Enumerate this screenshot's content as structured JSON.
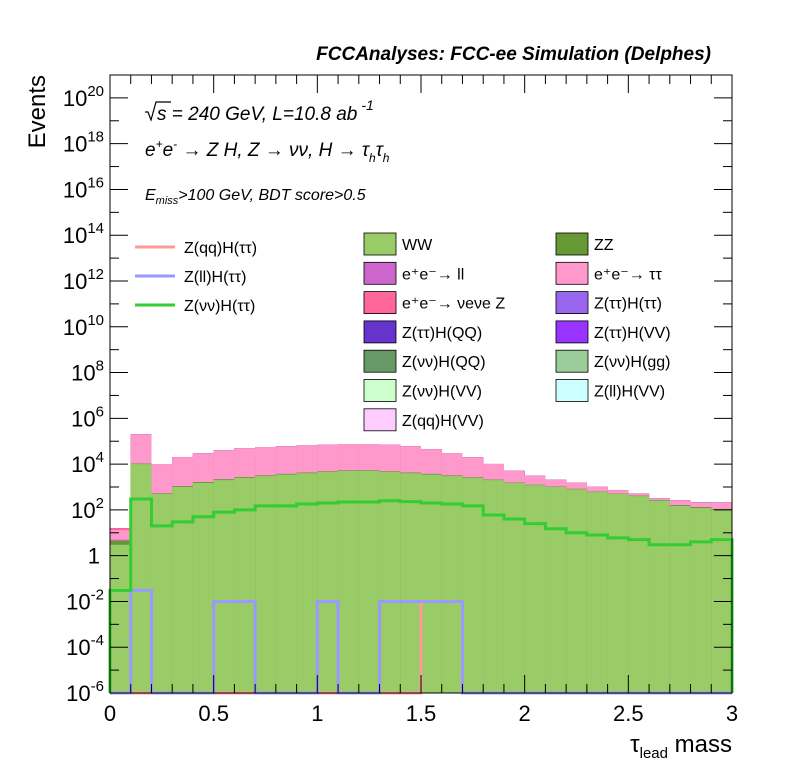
{
  "header": "FCCAnalyses: FCC-ee Simulation (Delphes)",
  "annotations": {
    "energy": "√s = 240 GeV, L=10.8 ab",
    "energy_sup": "-1",
    "process": "e⁺e⁻ → Z H, Z → νν, H → τhτh",
    "cuts": "Emiss>100 GeV, BDT score>0.5"
  },
  "colors": {
    "ee_tautau": "#ff99cc",
    "WW": "#99cc66",
    "ZZ": "#669933",
    "ee_nunuZ": "#ff6699",
    "ee_ll": "#cc66cc",
    "nunuH_QQ": "#669966",
    "nunuH_VV": "#ccffcc",
    "qqH_VV": "#ffccff",
    "nunuH_gg": "#99cc99",
    "llH_VV": "#ccffff",
    "tautauH_tautau": "#9966ee",
    "tautauH_QQ": "#6633cc",
    "tautauH_VV": "#9933ff",
    "sig_qq": "#ff9999",
    "sig_ll": "#9999ff",
    "sig_nunu": "#33cc33"
  },
  "chart_data": {
    "type": "histogram (stacked, log scale)",
    "title": "FCCAnalyses: FCC-ee Simulation (Delphes)",
    "xlabel": "τ_lead mass",
    "ylabel": "Events",
    "xlim": [
      0,
      3
    ],
    "ylim": [
      1e-06,
      1e+21
    ],
    "yscale": "log",
    "x_ticks": [
      "0",
      "0.5",
      "1",
      "1.5",
      "2",
      "2.5",
      "3"
    ],
    "y_ticks": [
      "10^-6",
      "10^-4",
      "10^-2",
      "1",
      "10^2",
      "10^4",
      "10^6",
      "10^8",
      "10^10",
      "10^12",
      "10^14",
      "10^16",
      "10^18",
      "10^20"
    ],
    "bin_edges": [
      0,
      0.1,
      0.2,
      0.3,
      0.4,
      0.5,
      0.6,
      0.7,
      0.8,
      0.9,
      1.0,
      1.1,
      1.2,
      1.3,
      1.4,
      1.5,
      1.6,
      1.7,
      1.8,
      1.9,
      2.0,
      2.1,
      2.2,
      2.3,
      2.4,
      2.5,
      2.6,
      2.7,
      2.8,
      2.9,
      3.0
    ],
    "stack_totals": [
      10,
      200000,
      10000,
      20000,
      30000,
      40000,
      50000,
      55000,
      60000,
      65000,
      70000,
      75000,
      75000,
      70000,
      60000,
      45000,
      30000,
      20000,
      10000,
      5000,
      3000,
      2000,
      1500,
      1000,
      700,
      500,
      300,
      250,
      200,
      200
    ],
    "backgrounds": [
      {
        "name": "WW",
        "values": [
          3,
          10000,
          500,
          1000,
          1500,
          2000,
          2500,
          3000,
          3500,
          4000,
          4500,
          5000,
          5000,
          4500,
          4000,
          3500,
          3000,
          2500,
          2000,
          1500,
          1200,
          1000,
          800,
          600,
          500,
          400,
          250,
          150,
          120,
          100
        ]
      },
      {
        "name": "ZZ",
        "values": [
          1.5,
          600,
          30,
          80,
          150,
          180,
          200,
          220,
          250,
          280,
          300,
          320,
          320,
          300,
          280,
          250,
          200,
          150,
          100,
          70,
          50,
          40,
          30,
          25,
          20,
          18,
          15,
          12,
          12,
          10
        ]
      },
      {
        "name": "e⁺e⁻→ ll",
        "values": [
          0.5,
          0.5,
          0.05,
          0.05,
          0.05,
          0.03,
          0.03,
          0.05,
          0.03,
          0.03,
          0.03,
          0.03,
          0.03,
          0.03,
          0.02,
          0.02,
          0.03,
          0.03,
          0.02,
          0.02,
          0.02,
          0.02,
          0.01,
          0.01,
          0.001,
          0.005,
          0.005,
          0.005,
          0.005,
          0.003
        ]
      },
      {
        "name": "e⁺e⁻→ ττ",
        "values": [
          8,
          190000,
          9500,
          19000,
          28000,
          38000,
          47000,
          52000,
          56000,
          61000,
          65000,
          70000,
          70000,
          65000,
          56000,
          41000,
          27000,
          17000,
          8000,
          3500,
          1800,
          1000,
          700,
          400,
          200,
          100,
          50,
          100,
          80,
          100
        ]
      },
      {
        "name": "e⁺e⁻→ νeνe Z",
        "values": [
          3,
          1500,
          15,
          50,
          60,
          80,
          90,
          100,
          120,
          130,
          140,
          150,
          150,
          140,
          130,
          110,
          90,
          70,
          40,
          20,
          15,
          10,
          8,
          6,
          5,
          4,
          3,
          3,
          3,
          2
        ]
      },
      {
        "name": "Z(ττ)H(ττ)",
        "values": [
          0.01,
          0.1,
          0.1,
          0.06,
          0.08,
          0.1,
          0.1,
          0.1,
          0.09,
          0.08,
          0.08,
          0.08,
          0.07,
          0.07,
          0.05,
          0.04,
          0.03,
          0.02,
          0.02,
          0.01,
          0.01,
          0.005,
          0.005,
          0.003,
          0.003,
          0.002,
          0.002,
          0.002,
          0.001,
          0.001
        ]
      },
      {
        "name": "Z(ττ)H(QQ)",
        "values": [
          0.005,
          0.05,
          0.05,
          0.03,
          0.04,
          0.05,
          0.05,
          0.05,
          0.04,
          0.04,
          0.04,
          0.04,
          0.03,
          0.03,
          0.02,
          0.02,
          0.01,
          0.01,
          0.01,
          0.005,
          0.005,
          0.003,
          0.003,
          0.002,
          0.002,
          0.001,
          0.001,
          0.001,
          0.001,
          0.001
        ]
      },
      {
        "name": "Z(ττ)H(VV)",
        "values": [
          0.02,
          0.3,
          0.2,
          0.1,
          0.1,
          0.1,
          0.1,
          0.12,
          0.12,
          0.1,
          0.1,
          0.1,
          0.1,
          0.08,
          0.06,
          0.05,
          0.04,
          0.03,
          0.02,
          0.01,
          0.01,
          0.005,
          0.005,
          0.003,
          0.003,
          0.002,
          0.002,
          0.002,
          0.001,
          0.001
        ]
      },
      {
        "name": "Z(νν)H(QQ)",
        "values": [
          0.0005,
          0.0001,
          0.0001,
          0.001,
          0.001,
          0.003,
          0.001,
          0.001,
          0.001,
          0.001,
          0.001,
          0.001,
          0.005,
          0.01,
          0.01,
          0.01,
          0.01,
          0.01,
          0.01,
          0.01,
          0.01,
          0.01,
          0.01,
          0.01,
          0.003,
          0.01,
          0.001,
          0.001,
          0.001,
          0.0001
        ]
      },
      {
        "name": "Z(νν)H(gg)",
        "values": [
          0,
          0,
          0,
          0,
          0,
          0,
          0,
          0,
          0,
          0,
          0,
          0,
          0.1,
          0.01,
          0,
          0,
          0,
          0,
          0,
          0,
          0,
          0,
          0,
          0,
          0,
          0,
          0,
          0,
          0,
          0
        ]
      },
      {
        "name": "Z(νν)H(VV)",
        "values": [
          0,
          0,
          0,
          0,
          0,
          0,
          0,
          0,
          0,
          0,
          0,
          0.01,
          0.01,
          0.01,
          0.01,
          0.01,
          0.01,
          0.02,
          0.01,
          0.01,
          0.01,
          0.01,
          0.01,
          0.01,
          0.01,
          0.01,
          0.01,
          0,
          0,
          0
        ]
      },
      {
        "name": "Z(ll)H(VV)",
        "values": [
          0.0005,
          0.001,
          0,
          0,
          0,
          0,
          0,
          0,
          0,
          0,
          0,
          0,
          0,
          0,
          0,
          0,
          0,
          0,
          0,
          0,
          0,
          0,
          0,
          0,
          0,
          0,
          0,
          0,
          0,
          0
        ]
      },
      {
        "name": "Z(qq)H(VV)",
        "values": [
          0,
          0,
          0,
          0,
          0,
          0,
          0,
          0,
          0,
          0,
          0,
          0,
          0,
          0,
          0,
          0,
          0,
          0,
          0,
          0,
          0.01,
          0.01,
          0.01,
          0,
          0,
          0,
          0.01,
          0,
          0.001,
          0.01
        ]
      }
    ],
    "signals": [
      {
        "name": "Z(qq)H(ττ)",
        "values": [
          1e-07,
          1e-07,
          1e-07,
          1e-07,
          1e-07,
          1e-07,
          1e-07,
          1e-07,
          1e-07,
          1e-07,
          1e-07,
          1e-07,
          1e-07,
          1e-07,
          1e-07,
          0.01,
          0.01,
          1e-07,
          1e-07,
          1e-07,
          1e-07,
          1e-07,
          1e-07,
          1e-07,
          1e-07,
          1e-07,
          1e-07,
          1e-07,
          1e-07,
          1e-07
        ]
      },
      {
        "name": "Z(ll)H(ττ)",
        "values": [
          1e-07,
          0.03,
          1e-07,
          1e-07,
          1e-07,
          0.01,
          0.01,
          1e-07,
          1e-07,
          1e-07,
          0.01,
          1e-07,
          1e-07,
          0.01,
          0.01,
          0.01,
          0.01,
          1e-07,
          1e-07,
          1e-07,
          1e-07,
          1e-07,
          1e-07,
          1e-07,
          1e-07,
          1e-07,
          1e-07,
          1e-07,
          1e-07,
          1e-07
        ]
      },
      {
        "name": "Z(νν)H(ττ)",
        "values": [
          0.03,
          300,
          20,
          30,
          50,
          80,
          100,
          150,
          150,
          180,
          200,
          220,
          220,
          250,
          230,
          200,
          180,
          150,
          60,
          40,
          25,
          15,
          10,
          8,
          6,
          5,
          3,
          3,
          4,
          5
        ]
      }
    ],
    "legend_left": [
      "Z(qq)H(ττ)",
      "Z(ll)H(ττ)",
      "Z(νν)H(ττ)"
    ],
    "legend_right": [
      "WW",
      "ZZ",
      "e⁺e⁻→ ll",
      "e⁺e⁻→ ττ",
      "e⁺e⁻→ νeνe Z",
      "Z(ττ)H(ττ)",
      "Z(ττ)H(QQ)",
      "Z(ττ)H(VV)",
      "Z(νν)H(QQ)",
      "Z(νν)H(gg)",
      "Z(νν)H(VV)",
      "Z(ll)H(VV)",
      "Z(qq)H(VV)"
    ]
  }
}
